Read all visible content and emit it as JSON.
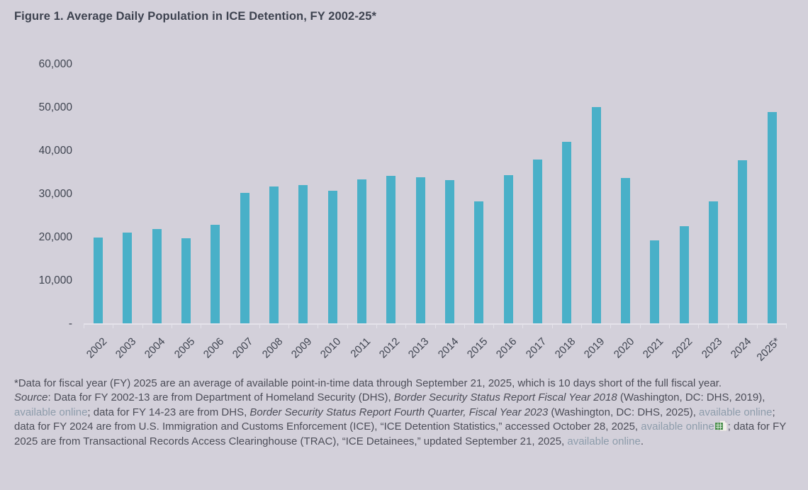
{
  "title": "Figure 1. Average Daily Population in ICE Detention, FY 2002-25*",
  "colors": {
    "background": "#d3d0da",
    "bar": "#49b0c8",
    "title_text": "#3e4350",
    "axis_text": "#3f4450",
    "note_text": "#4c4d58",
    "link": "#8d9cab",
    "axis_line": "#e4e2ea",
    "excel_icon_green": "#4e9150"
  },
  "chart_data": {
    "type": "bar",
    "title": "Figure 1. Average Daily Population in ICE Detention, FY 2002-25*",
    "xlabel": "",
    "ylabel": "",
    "ylim": [
      0,
      60000
    ],
    "ytick_values": [
      60000,
      50000,
      40000,
      30000,
      20000,
      10000,
      0
    ],
    "ytick_labels": [
      "60,000",
      "50,000",
      "40,000",
      "30,000",
      "20,000",
      "10,000",
      "-"
    ],
    "grid": false,
    "legend_position": "none",
    "bar_color": "#49b0c8",
    "categories": [
      "2002",
      "2003",
      "2004",
      "2005",
      "2006",
      "2007",
      "2008",
      "2009",
      "2010",
      "2011",
      "2012",
      "2013",
      "2014",
      "2015",
      "2016",
      "2017",
      "2018",
      "2019",
      "2020",
      "2021",
      "2022",
      "2023",
      "2024",
      "2025*"
    ],
    "values": [
      20000,
      21200,
      22000,
      19800,
      23000,
      30300,
      31800,
      32100,
      30900,
      33400,
      34300,
      33900,
      33200,
      28400,
      34400,
      38100,
      42200,
      50200,
      33700,
      19300,
      22600,
      28300,
      37900,
      49000
    ]
  },
  "footnote": {
    "asterisk_note": "*Data for fiscal year (FY) 2025 are an average of available point-in-time data through September 21, 2025, which is 10 days short of the full fiscal year.",
    "source_segments": [
      {
        "style": "italic",
        "text": "Source"
      },
      {
        "style": "normal",
        "text": ": Data for FY 2002-13 are from Department of Homeland Security (DHS), "
      },
      {
        "style": "italic",
        "text": "Border Security Status Report Fiscal Year 2018"
      },
      {
        "style": "normal",
        "text": " (Washington, DC: DHS, 2019), "
      },
      {
        "style": "link",
        "text": "available online"
      },
      {
        "style": "normal",
        "text": "; data for FY 14-23 are from DHS, "
      },
      {
        "style": "italic",
        "text": "Border Security Status Report Fourth Quarter, Fiscal Year 2023"
      },
      {
        "style": "normal",
        "text": " (Washington, DC: DHS, 2025), "
      },
      {
        "style": "link",
        "text": "available online"
      },
      {
        "style": "normal",
        "text": "; data for FY 2024 are from U.S. Immigration and Customs Enforcement (ICE), “ICE Detention Statistics,” accessed October 28, 2025, "
      },
      {
        "style": "link",
        "text": "available online"
      },
      {
        "style": "icon",
        "text": "excel-file-icon"
      },
      {
        "style": "normal",
        "text": "; data for FY 2025 are from Transactional Records Access Clearinghouse (TRAC), “ICE Detainees,” updated September 21, 2025, "
      },
      {
        "style": "link",
        "text": "available online"
      },
      {
        "style": "normal",
        "text": "."
      }
    ]
  }
}
